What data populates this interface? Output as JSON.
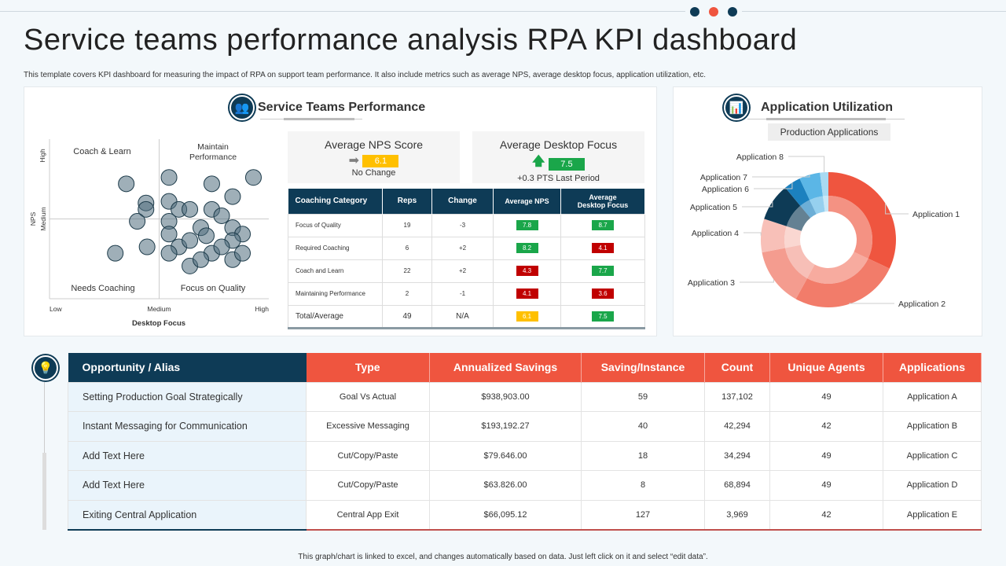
{
  "title": "Service teams performance analysis RPA KPI dashboard",
  "subtitle": "This template covers KPI dashboard for measuring the impact of RPA on support team performance. It also include metrics such as average NPS,  average desktop focus, application utilization,  etc.",
  "colors": {
    "navy": "#0e3b56",
    "accent": "#ef553f",
    "green": "#1aa64a",
    "red": "#c00000",
    "yellow": "#ffc000"
  },
  "service_panel": {
    "title": "Service Teams Performance",
    "icon": "team-icon"
  },
  "chart_data": [
    {
      "type": "scatter",
      "xlabel": "Desktop Focus",
      "ylabel": "NPS",
      "x_ticks": [
        "Low",
        "Medium",
        "High"
      ],
      "y_ticks": [
        "High",
        "Medium"
      ],
      "xlim": [
        0,
        2
      ],
      "ylim": [
        0,
        2
      ],
      "quadrants": {
        "top_left": "Coach & Learn",
        "top_right": "Maintain Performance",
        "bottom_left": "Needs Coaching",
        "bottom_right": "Focus on Quality"
      },
      "points": [
        [
          0.7,
          1.44
        ],
        [
          0.88,
          1.2
        ],
        [
          0.88,
          1.12
        ],
        [
          0.8,
          0.97
        ],
        [
          0.6,
          0.57
        ],
        [
          0.89,
          0.65
        ],
        [
          1.09,
          1.52
        ],
        [
          1.48,
          1.44
        ],
        [
          1.86,
          1.52
        ],
        [
          1.67,
          1.28
        ],
        [
          1.09,
          1.22
        ],
        [
          1.18,
          1.12
        ],
        [
          1.28,
          1.12
        ],
        [
          1.48,
          1.12
        ],
        [
          1.57,
          1.04
        ],
        [
          1.38,
          0.89
        ],
        [
          1.09,
          0.97
        ],
        [
          1.09,
          0.81
        ],
        [
          1.43,
          0.79
        ],
        [
          1.67,
          0.89
        ],
        [
          1.76,
          0.81
        ],
        [
          1.67,
          0.73
        ],
        [
          1.18,
          0.65
        ],
        [
          1.28,
          0.73
        ],
        [
          1.09,
          0.57
        ],
        [
          1.48,
          0.57
        ],
        [
          1.57,
          0.65
        ],
        [
          1.28,
          0.41
        ],
        [
          1.67,
          0.49
        ],
        [
          1.76,
          0.57
        ],
        [
          1.38,
          0.49
        ]
      ]
    },
    {
      "type": "pie",
      "title": "Production Applications",
      "donut": true,
      "labels": [
        "Application 1",
        "Application 2",
        "Application 3",
        "Application 4",
        "Application 5",
        "Application 6",
        "Application 7",
        "Application 8"
      ],
      "values": [
        32,
        26,
        14,
        8,
        9,
        4,
        5,
        2
      ],
      "colors": [
        "#ef553f",
        "#f27c6a",
        "#f49c8f",
        "#f8c0b8",
        "#0e3b56",
        "#1c81bf",
        "#5bb6e6",
        "#a9daf2"
      ]
    }
  ],
  "kpis": [
    {
      "title": "Average  NPS Score",
      "value": "6.1",
      "note": "No Change",
      "icon": "arrow-right-icon",
      "color": "#ffc000"
    },
    {
      "title": "Average  Desktop Focus",
      "value": "7.5",
      "note": "+0.3 PTS  Last Period",
      "icon": "arrow-up-icon",
      "color": "#1aa64a"
    }
  ],
  "coaching_table": {
    "headers": [
      "Coaching Category",
      "Reps",
      "Change",
      "Average NPS",
      "Average Desktop Focus"
    ],
    "rows": [
      {
        "cat": "Focus of Quality",
        "reps": "19",
        "change": "-3",
        "nps": "7.8",
        "nps_color": "#1aa64a",
        "df": "8.7",
        "df_color": "#1aa64a"
      },
      {
        "cat": "Required Coaching",
        "reps": "6",
        "change": "+2",
        "nps": "8.2",
        "nps_color": "#1aa64a",
        "df": "4.1",
        "df_color": "#c00000"
      },
      {
        "cat": "Coach and Learn",
        "reps": "22",
        "change": "+2",
        "nps": "4.3",
        "nps_color": "#c00000",
        "df": "7.7",
        "df_color": "#1aa64a"
      },
      {
        "cat": "Maintaining Performance",
        "reps": "2",
        "change": "-1",
        "nps": "4.1",
        "nps_color": "#c00000",
        "df": "3.6",
        "df_color": "#c00000"
      },
      {
        "cat": "Total/Average",
        "reps": "49",
        "change": "N/A",
        "nps": "6.1",
        "nps_color": "#ffc000",
        "df": "7.5",
        "df_color": "#1aa64a"
      }
    ]
  },
  "app_panel": {
    "title": "Application  Utilization",
    "subtitle": "Production Applications",
    "icon": "presentation-icon"
  },
  "opportunity_table": {
    "icon": "idea-hand-icon",
    "headers": [
      "Opportunity  / Alias",
      "Type",
      "Annualized Savings",
      "Saving/Instance",
      "Count",
      "Unique Agents",
      "Applications"
    ],
    "rows": [
      [
        "Setting Production Goal Strategically",
        "Goal Vs Actual",
        "$938,903.00",
        "59",
        "137,102",
        "49",
        "Application A"
      ],
      [
        "Instant Messaging for Communication",
        "Excessive Messaging",
        "$193,192.27",
        "40",
        "42,294",
        "42",
        "Application B"
      ],
      [
        "Add Text Here",
        "Cut/Copy/Paste",
        "$79.646.00",
        "18",
        "34,294",
        "49",
        "Application C"
      ],
      [
        "Add Text Here",
        "Cut/Copy/Paste",
        "$63.826.00",
        "8",
        "68,894",
        "49",
        "Application D"
      ],
      [
        "Exiting Central Application",
        "Central App Exit",
        "$66,095.12",
        "127",
        "3,969",
        "42",
        "Application E"
      ]
    ]
  },
  "footer": "This graph/chart is linked to excel, and changes automatically based on data. Just left click on it and select “edit data”."
}
